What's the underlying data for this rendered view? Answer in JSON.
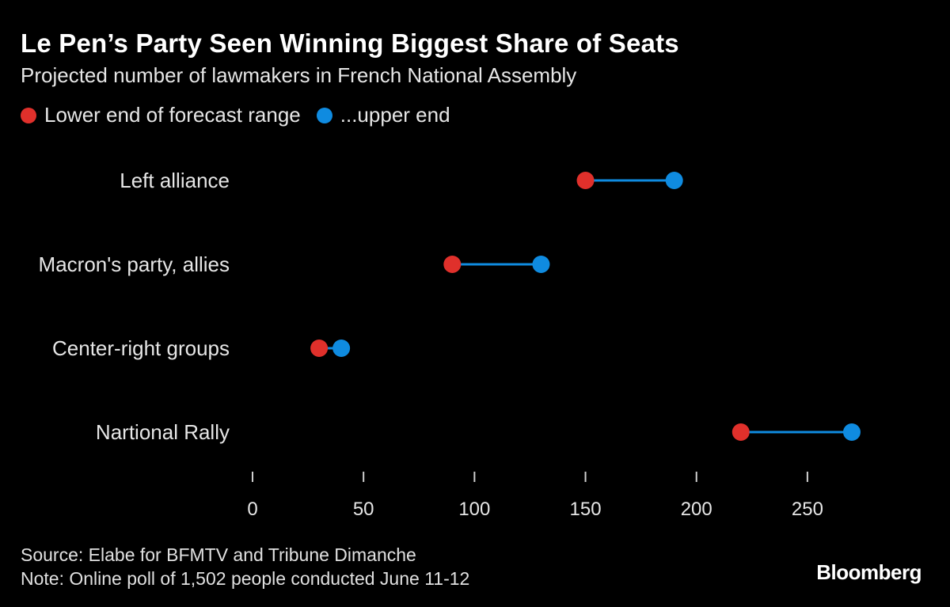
{
  "chart_data": {
    "type": "dumbbell",
    "title": "Le Pen’s Party Seen Winning Biggest Share of Seats",
    "subtitle": "Projected number of lawmakers in French National Assembly",
    "legend": {
      "position": "top-left",
      "lower_label": "Lower end of forecast range",
      "upper_label": "...upper end"
    },
    "categories": [
      "Left alliance",
      "Macron's party, allies",
      "Center-right groups",
      "Nartional Rally"
    ],
    "series": [
      {
        "name": "Lower end of forecast range",
        "values": [
          150,
          90,
          30,
          220
        ]
      },
      {
        "name": "...upper end",
        "values": [
          190,
          130,
          40,
          270
        ]
      }
    ],
    "xlim": [
      0,
      275
    ],
    "xticks": [
      0,
      50,
      100,
      150,
      200,
      250
    ],
    "xlabel": "",
    "ylabel": "",
    "grid": false
  },
  "colors": {
    "background": "#000000",
    "lower": "#e0302b",
    "upper": "#0f8be0",
    "connector": "#0f8be0",
    "text": "#e6e6e6"
  },
  "footer": {
    "source": "Source: Elabe for BFMTV and Tribune Dimanche",
    "note": "Note: Online poll of 1,502 people conducted June 11-12"
  },
  "brand": "Bloomberg"
}
